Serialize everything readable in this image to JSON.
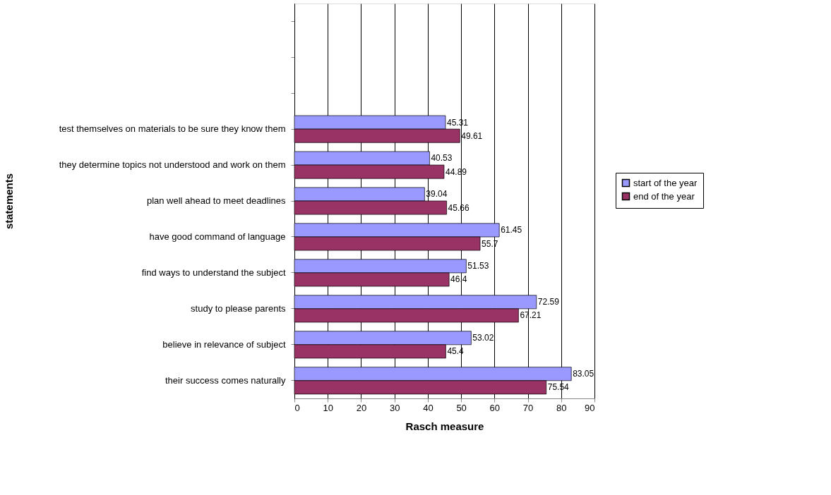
{
  "chart_data": {
    "type": "bar",
    "orientation": "horizontal",
    "xlabel": "Rasch measure",
    "ylabel": "statements",
    "categories": [
      null,
      null,
      null,
      "test themselves on materials to be sure they know them",
      "they determine topics not understood and work on them",
      "plan well ahead to meet deadlines",
      "have good command of language",
      "find ways to understand the subject",
      "study to please parents",
      "believe in relevance of subject",
      "their success comes naturally"
    ],
    "series": [
      {
        "name": "start of the year",
        "color": "#9999ff",
        "values": [
          null,
          null,
          null,
          45.31,
          40.53,
          39.04,
          61.45,
          51.53,
          72.59,
          53.02,
          83.05
        ]
      },
      {
        "name": "end of the year",
        "color": "#993366",
        "values": [
          null,
          null,
          null,
          49.61,
          44.89,
          45.66,
          55.7,
          46.4,
          67.21,
          45.4,
          75.54
        ]
      }
    ],
    "xlim": [
      0,
      90
    ],
    "xticks": [
      0,
      10,
      20,
      30,
      40,
      50,
      60,
      70,
      80,
      90
    ],
    "grid": "x",
    "legend": "right",
    "data_labels": true
  }
}
